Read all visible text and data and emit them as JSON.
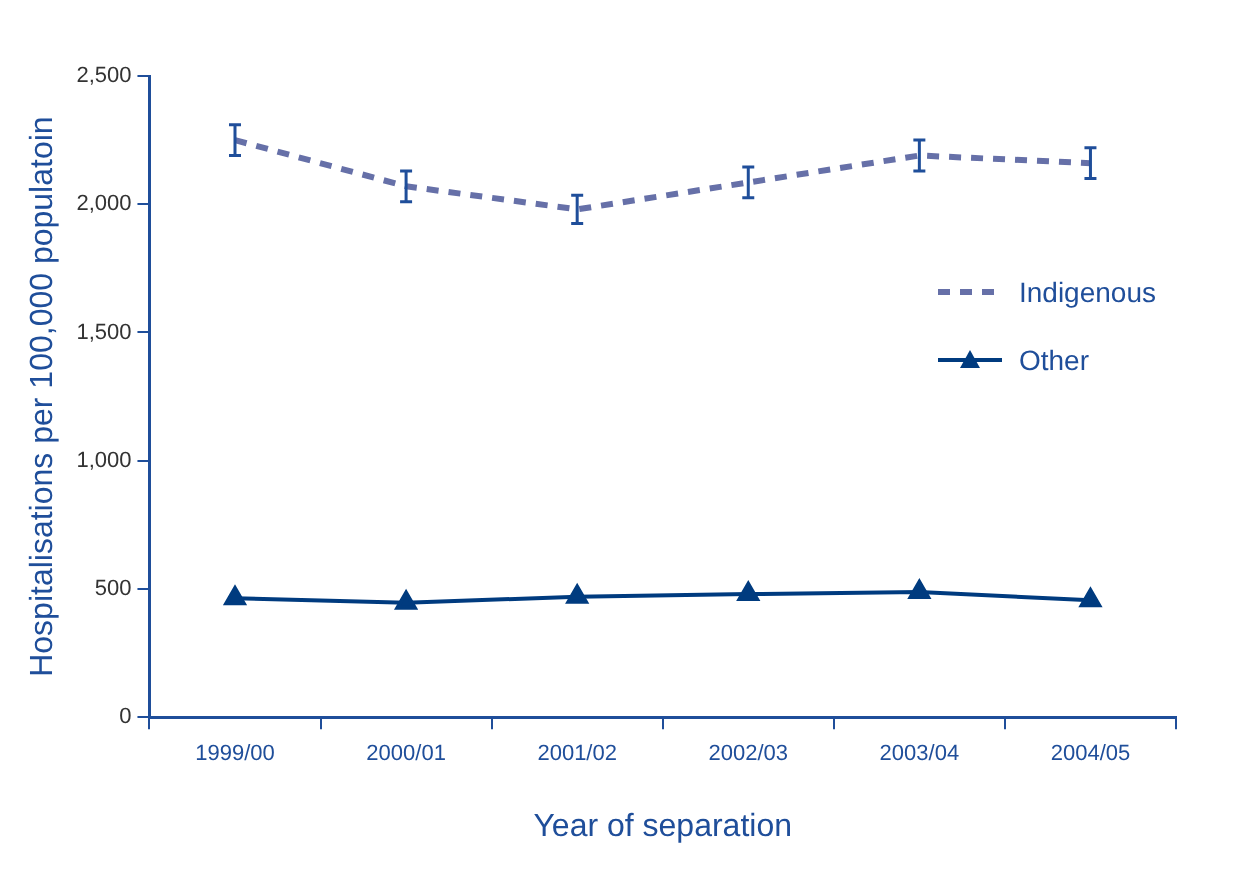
{
  "chart_data": {
    "type": "line",
    "xlabel": "Year of separation",
    "ylabel": "Hospitalisations per 100,000 populatoin",
    "categories": [
      "1999/00",
      "2000/01",
      "2001/02",
      "2002/03",
      "2003/04",
      "2004/05"
    ],
    "series": [
      {
        "name": "Indigenous",
        "color": "#6670a8",
        "line_style": "dashed",
        "marker": "none",
        "values": [
          2250,
          2070,
          1980,
          2085,
          2190,
          2160
        ],
        "errors": [
          60,
          60,
          55,
          60,
          60,
          60
        ]
      },
      {
        "name": "Other",
        "color": "#003b7f",
        "line_style": "solid",
        "marker": "triangle",
        "values": [
          464,
          446,
          470,
          480,
          488,
          456
        ]
      }
    ],
    "ylim": [
      0,
      2500
    ],
    "yticks": [
      {
        "value": 0,
        "label": "0"
      },
      {
        "value": 500,
        "label": "500"
      },
      {
        "value": 1000,
        "label": "1,000"
      },
      {
        "value": 1500,
        "label": "1,500"
      },
      {
        "value": 2000,
        "label": "2,000"
      },
      {
        "value": 2500,
        "label": "2,500"
      }
    ],
    "grid": false,
    "legend": "right"
  }
}
